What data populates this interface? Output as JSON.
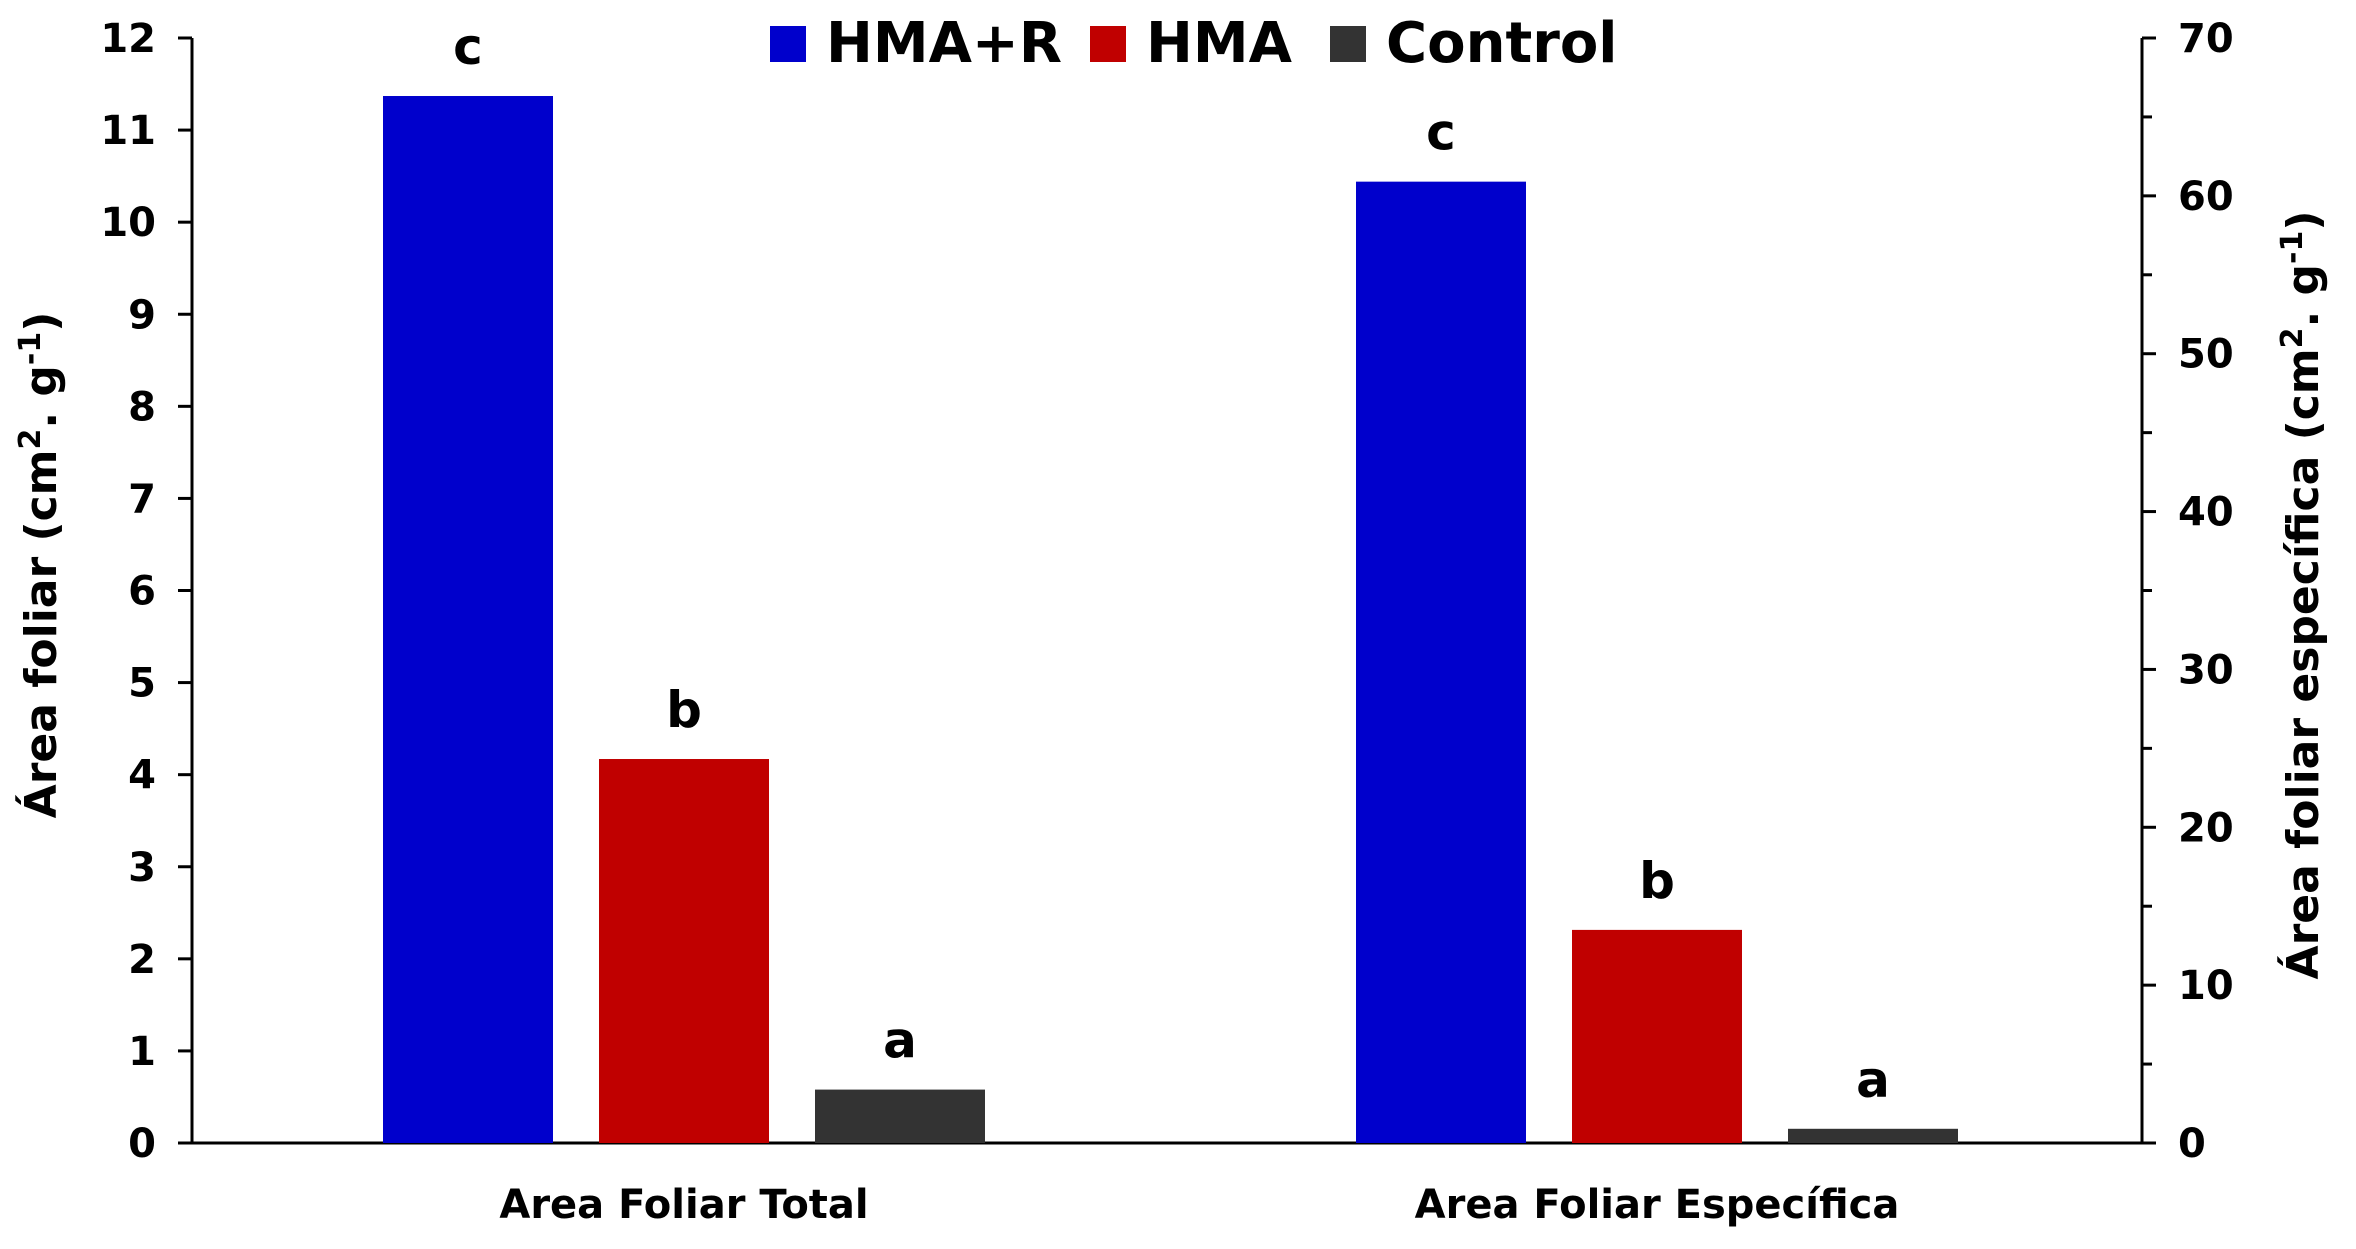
{
  "chart_data": {
    "type": "bar",
    "categories": [
      "Area Foliar Total",
      "Area Foliar Específica"
    ],
    "series": [
      {
        "name": "HMA+R",
        "color": "#0000CC",
        "values": [
          11.37,
          60.9
        ]
      },
      {
        "name": "HMA",
        "color": "#C00000",
        "values": [
          4.17,
          13.5
        ]
      },
      {
        "name": "Control",
        "color": "#333333",
        "values": [
          0.58,
          0.9
        ]
      }
    ],
    "axis_assignment": [
      "left",
      "right"
    ],
    "bar_labels": [
      [
        "c",
        "b",
        "a"
      ],
      [
        "c",
        "b",
        "a"
      ]
    ],
    "y_left": {
      "label_main": "Área foliar (cm",
      "label_sup1": "2",
      "label_mid": ". g",
      "label_sup2": "-1",
      "label_end": ")",
      "range": [
        0,
        12
      ],
      "ticks": [
        "0",
        "1",
        "2",
        "3",
        "4",
        "5",
        "6",
        "7",
        "8",
        "9",
        "10",
        "11",
        "12"
      ]
    },
    "y_right": {
      "label_main": "Área foliar específica (cm",
      "label_sup1": "2",
      "label_mid": ". g",
      "label_sup2": "-1",
      "label_end": ")",
      "range": [
        0,
        70
      ],
      "ticks": [
        "0",
        "10",
        "20",
        "30",
        "40",
        "50",
        "60",
        "70"
      ]
    },
    "legend_position": "top-center",
    "grid": false,
    "title": "",
    "xlabel": ""
  }
}
